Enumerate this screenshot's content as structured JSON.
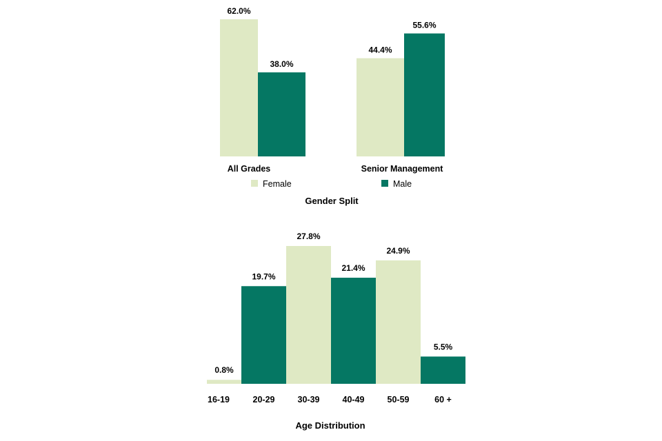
{
  "colors": {
    "female": "#dfe9c4",
    "male": "#057763"
  },
  "chart_data": [
    {
      "type": "bar",
      "title": "Gender Split",
      "categories": [
        "All Grades",
        "Senior Management"
      ],
      "series": [
        {
          "name": "Female",
          "color": "#dfe9c4",
          "values": [
            62.0,
            44.4
          ],
          "labels": [
            "62.0%",
            "44.4%"
          ]
        },
        {
          "name": "Male",
          "color": "#057763",
          "values": [
            38.0,
            55.6
          ],
          "labels": [
            "38.0%",
            "55.6%"
          ]
        }
      ],
      "legend": "bottom",
      "grid": false
    },
    {
      "type": "bar",
      "title": "Age Distribution",
      "categories": [
        "16-19",
        "20-29",
        "30-39",
        "40-49",
        "50-59",
        "60 +"
      ],
      "values": [
        0.8,
        19.7,
        27.8,
        21.4,
        24.9,
        5.5
      ],
      "labels": [
        "0.8%",
        "19.7%",
        "27.8%",
        "21.4%",
        "24.9%",
        "5.5%"
      ],
      "bar_colors": [
        "#dfe9c4",
        "#057763",
        "#dfe9c4",
        "#057763",
        "#dfe9c4",
        "#057763"
      ],
      "grid": false
    }
  ]
}
